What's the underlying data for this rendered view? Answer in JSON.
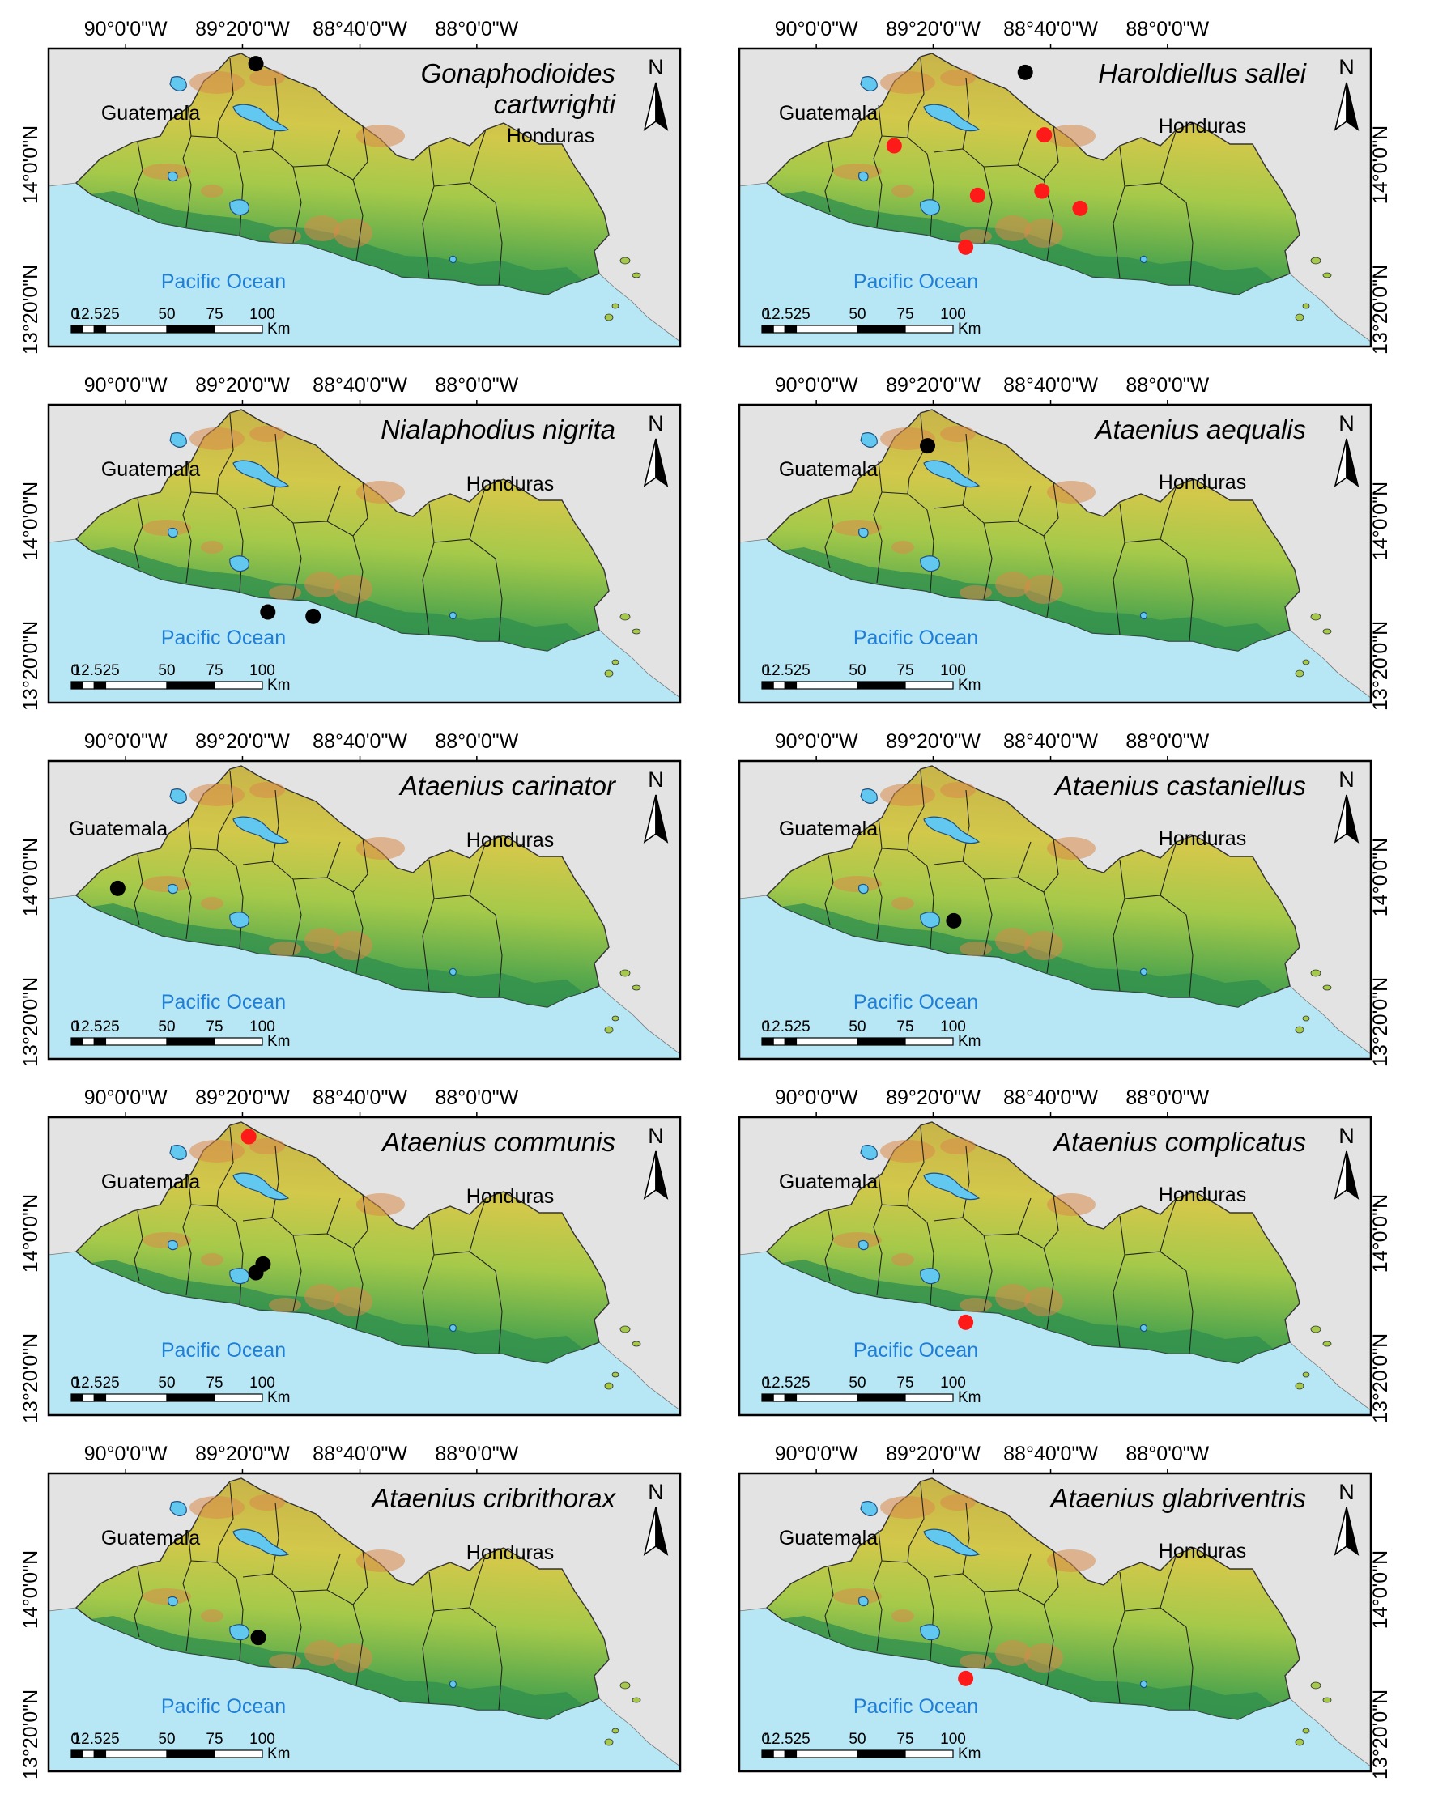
{
  "colors": {
    "ocean": "#b7e6f5",
    "land_outside": "#e3e3e3",
    "lowland": "#2f8f4e",
    "midland": "#a5c94a",
    "highland": "#dcc24a",
    "peak": "#d98a4a",
    "lake": "#62c8f0",
    "record_black": "#000000",
    "record_red": "#ff1a1a",
    "ocean_text": "#1f7fd6"
  },
  "labels": {
    "guatemala": "Guatemala",
    "honduras": "Honduras",
    "pacific": "Pacific Ocean",
    "north": "N",
    "scale_km": "Km",
    "scale_ticks": [
      "0",
      "12.525",
      "50",
      "75",
      "100"
    ]
  },
  "axes": {
    "lon_ticks": [
      "90°0'0\"W",
      "89°20'0\"W",
      "88°40'0\"W",
      "88°0'0\"W"
    ],
    "lat_ticks": [
      "14°0'0\"N",
      "13°20'0\"N"
    ]
  },
  "panels": [
    {
      "species": [
        "Gonaphodioides",
        "cartwrighti"
      ],
      "records": [
        {
          "lon": -89.38,
          "lat": 14.43,
          "color": "black"
        }
      ]
    },
    {
      "species": [
        "Haroldiellus sallei"
      ],
      "records": [
        {
          "lon": -89.05,
          "lat": 14.39,
          "color": "black"
        },
        {
          "lon": -88.97,
          "lat": 14.1,
          "color": "red"
        },
        {
          "lon": -89.6,
          "lat": 14.05,
          "color": "red"
        },
        {
          "lon": -89.25,
          "lat": 13.82,
          "color": "red"
        },
        {
          "lon": -88.98,
          "lat": 13.84,
          "color": "red"
        },
        {
          "lon": -88.82,
          "lat": 13.76,
          "color": "red"
        },
        {
          "lon": -89.3,
          "lat": 13.58,
          "color": "red"
        }
      ]
    },
    {
      "species": [
        "Nialaphodius nigrita"
      ],
      "records": [
        {
          "lon": -89.33,
          "lat": 13.54,
          "color": "black"
        },
        {
          "lon": -89.14,
          "lat": 13.52,
          "color": "black"
        }
      ]
    },
    {
      "species": [
        "Ataenius aequalis"
      ],
      "records": [
        {
          "lon": -89.46,
          "lat": 14.31,
          "color": "black"
        }
      ]
    },
    {
      "species": [
        "Ataenius carinator"
      ],
      "records": [
        {
          "lon": -89.96,
          "lat": 13.91,
          "color": "black"
        }
      ]
    },
    {
      "species": [
        "Ataenius castaniellus"
      ],
      "records": [
        {
          "lon": -89.35,
          "lat": 13.76,
          "color": "black"
        }
      ]
    },
    {
      "species": [
        "Ataenius communis"
      ],
      "records": [
        {
          "lon": -89.41,
          "lat": 14.41,
          "color": "red"
        },
        {
          "lon": -89.35,
          "lat": 13.82,
          "color": "black"
        },
        {
          "lon": -89.38,
          "lat": 13.78,
          "color": "black"
        }
      ]
    },
    {
      "species": [
        "Ataenius complicatus"
      ],
      "records": [
        {
          "lon": -89.3,
          "lat": 13.55,
          "color": "red"
        }
      ]
    },
    {
      "species": [
        "Ataenius cribrithorax"
      ],
      "records": [
        {
          "lon": -89.37,
          "lat": 13.74,
          "color": "black"
        }
      ]
    },
    {
      "species": [
        "Ataenius glabriventris"
      ],
      "records": [
        {
          "lon": -89.3,
          "lat": 13.55,
          "color": "red"
        }
      ]
    }
  ]
}
